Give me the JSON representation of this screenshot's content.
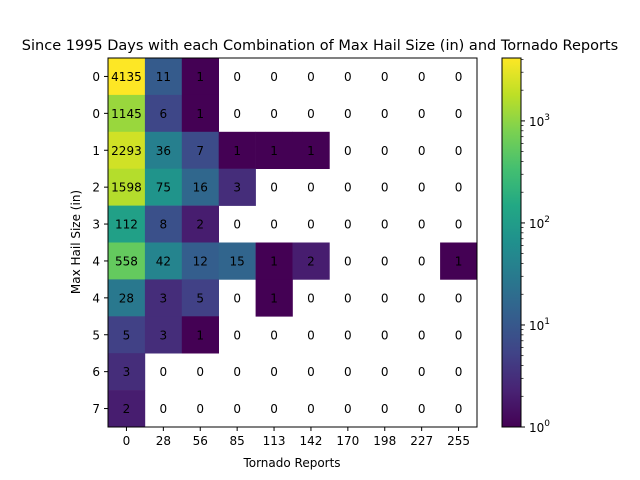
{
  "chart_data": {
    "type": "heatmap",
    "title": "Since 1995 Days with each Combination of Max Hail Size (in) and Tornado Reports",
    "xlabel": "Tornado Reports",
    "ylabel": "Max Hail Size (in)",
    "x_tick_labels": [
      "0",
      "28",
      "56",
      "85",
      "113",
      "142",
      "170",
      "198",
      "227",
      "255"
    ],
    "y_tick_labels": [
      "0",
      "0",
      "1",
      "2",
      "3",
      "4",
      "4",
      "5",
      "6",
      "7"
    ],
    "values": [
      [
        4135,
        11,
        1,
        0,
        0,
        0,
        0,
        0,
        0,
        0
      ],
      [
        1145,
        6,
        1,
        0,
        0,
        0,
        0,
        0,
        0,
        0
      ],
      [
        2293,
        36,
        7,
        1,
        1,
        1,
        0,
        0,
        0,
        0
      ],
      [
        1598,
        75,
        16,
        3,
        0,
        0,
        0,
        0,
        0,
        0
      ],
      [
        112,
        8,
        2,
        0,
        0,
        0,
        0,
        0,
        0,
        0
      ],
      [
        558,
        42,
        12,
        15,
        1,
        2,
        0,
        0,
        0,
        1
      ],
      [
        28,
        3,
        5,
        0,
        1,
        0,
        0,
        0,
        0,
        0
      ],
      [
        5,
        3,
        1,
        0,
        0,
        0,
        0,
        0,
        0,
        0
      ],
      [
        3,
        0,
        0,
        0,
        0,
        0,
        0,
        0,
        0,
        0
      ],
      [
        2,
        0,
        0,
        0,
        0,
        0,
        0,
        0,
        0,
        0
      ]
    ],
    "color_scale": "log",
    "colormap": "viridis",
    "zero_cells": "blank",
    "colorbar": {
      "range": [
        1,
        4135
      ],
      "tick_labels": [
        {
          "base": "10",
          "exp": "0"
        },
        {
          "base": "10",
          "exp": "1"
        },
        {
          "base": "10",
          "exp": "2"
        },
        {
          "base": "10",
          "exp": "3"
        }
      ]
    },
    "grid": false
  }
}
